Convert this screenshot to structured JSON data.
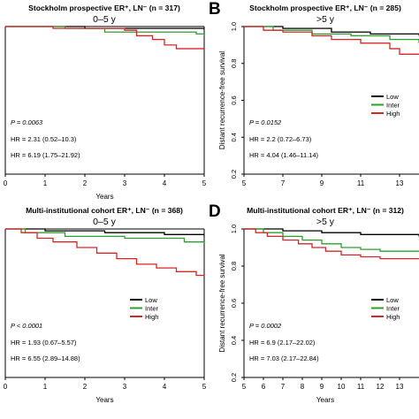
{
  "colors": {
    "low": "#000000",
    "inter": "#2ca02c",
    "high": "#d62728",
    "axis": "#000000"
  },
  "chart_data": [
    {
      "type": "line",
      "panel_letter": "",
      "title": "Stockholm prospective ER⁺, LN⁻ (n = 317)",
      "subtitle": "0–5 y",
      "xlabel": "Years",
      "ylabel": "",
      "xlim": [
        0,
        5
      ],
      "ylim": [
        0.2,
        1.0
      ],
      "xticks": [
        "0",
        "1",
        "2",
        "3",
        "4",
        "5"
      ],
      "yticks": [],
      "legend": "",
      "annotations": [
        "P = 0.0063",
        "HR = 2.31 (0.52–10.3)",
        "HR = 6.19 (1.75–21.92)"
      ],
      "series": [
        {
          "name": "Low",
          "color_key": "low",
          "points": [
            [
              0,
              1.0
            ],
            [
              2.0,
              0.99
            ],
            [
              5,
              0.98
            ]
          ]
        },
        {
          "name": "Inter",
          "color_key": "inter",
          "points": [
            [
              0,
              1.0
            ],
            [
              1.5,
              0.99
            ],
            [
              2.5,
              0.97
            ],
            [
              4.8,
              0.96
            ],
            [
              5,
              0.95
            ]
          ]
        },
        {
          "name": "High",
          "color_key": "high",
          "points": [
            [
              0,
              1.0
            ],
            [
              1.2,
              0.99
            ],
            [
              3.0,
              0.98
            ],
            [
              3.3,
              0.95
            ],
            [
              3.7,
              0.93
            ],
            [
              4.0,
              0.9
            ],
            [
              4.3,
              0.88
            ],
            [
              5,
              0.88
            ]
          ]
        }
      ]
    },
    {
      "type": "line",
      "panel_letter": "B",
      "title": "Stockholm prospective ER⁺, LN⁻ (n = 285)",
      "subtitle": ">5 y",
      "xlabel": "",
      "ylabel": "Distant recurrence-free survival",
      "xlim": [
        5,
        14
      ],
      "ylim": [
        0.2,
        1.0
      ],
      "xticks": [
        "5",
        "7",
        "9",
        "11",
        "13"
      ],
      "yticks": [
        "0.2",
        "0.4",
        "0.6",
        "0.8",
        "1.0"
      ],
      "legend": "top-right",
      "annotations": [
        "P = 0.0152",
        "HR = 2.2 (0.72–6.73)",
        "HR = 4.04 (1.46–11.14)"
      ],
      "series": [
        {
          "name": "Low",
          "color_key": "low",
          "points": [
            [
              5,
              1.0
            ],
            [
              7.0,
              0.99
            ],
            [
              9.5,
              0.97
            ],
            [
              11.5,
              0.96
            ],
            [
              14,
              0.95
            ]
          ]
        },
        {
          "name": "Inter",
          "color_key": "inter",
          "points": [
            [
              5,
              1.0
            ],
            [
              6.5,
              0.98
            ],
            [
              8.5,
              0.96
            ],
            [
              10.5,
              0.95
            ],
            [
              12.5,
              0.93
            ],
            [
              14,
              0.91
            ]
          ]
        },
        {
          "name": "High",
          "color_key": "high",
          "points": [
            [
              5,
              1.0
            ],
            [
              6.0,
              0.98
            ],
            [
              7.0,
              0.97
            ],
            [
              8.5,
              0.95
            ],
            [
              9.5,
              0.93
            ],
            [
              11.0,
              0.91
            ],
            [
              12.5,
              0.88
            ],
            [
              13.0,
              0.85
            ],
            [
              14,
              0.85
            ]
          ]
        }
      ]
    },
    {
      "type": "line",
      "panel_letter": "",
      "title": "Multi-institutional cohort ER⁺, LN⁻ (n = 368)",
      "subtitle": "0–5 y",
      "xlabel": "Years",
      "ylabel": "",
      "xlim": [
        0,
        5
      ],
      "ylim": [
        0.2,
        1.0
      ],
      "xticks": [
        "0",
        "1",
        "2",
        "3",
        "4",
        "5"
      ],
      "yticks": [],
      "legend": "right",
      "annotations": [
        "P < 0.0001",
        "HR = 1.93 (0.67–5.57)",
        "HR = 6.55 (2.89–14.88)"
      ],
      "series": [
        {
          "name": "Low",
          "color_key": "low",
          "points": [
            [
              0,
              1.0
            ],
            [
              1.0,
              0.99
            ],
            [
              2.5,
              0.98
            ],
            [
              4.0,
              0.97
            ],
            [
              5,
              0.96
            ]
          ]
        },
        {
          "name": "Inter",
          "color_key": "inter",
          "points": [
            [
              0,
              1.0
            ],
            [
              0.5,
              0.98
            ],
            [
              1.5,
              0.96
            ],
            [
              3.0,
              0.95
            ],
            [
              4.5,
              0.93
            ],
            [
              5,
              0.92
            ]
          ]
        },
        {
          "name": "High",
          "color_key": "high",
          "points": [
            [
              0,
              1.0
            ],
            [
              0.4,
              0.98
            ],
            [
              0.8,
              0.95
            ],
            [
              1.2,
              0.93
            ],
            [
              1.8,
              0.9
            ],
            [
              2.3,
              0.87
            ],
            [
              2.8,
              0.84
            ],
            [
              3.3,
              0.81
            ],
            [
              3.8,
              0.79
            ],
            [
              4.3,
              0.77
            ],
            [
              4.8,
              0.75
            ],
            [
              5,
              0.75
            ]
          ]
        }
      ]
    },
    {
      "type": "line",
      "panel_letter": "D",
      "title": "Multi-institutional cohort ER⁺, LN⁻ (n = 312)",
      "subtitle": ">5 y",
      "xlabel": "Years",
      "ylabel": "Distant recurrence-free survival",
      "xlim": [
        5,
        14
      ],
      "ylim": [
        0.2,
        1.0
      ],
      "xticks": [
        "5",
        "6",
        "7",
        "8",
        "9",
        "10",
        "11",
        "12",
        "13"
      ],
      "yticks": [
        "0.2",
        "0.4",
        "0.6",
        "0.8",
        "1.0"
      ],
      "legend": "top-right",
      "annotations": [
        "P = 0.0002",
        "HR = 6.9 (2.17–22.02)",
        "HR = 7.03 (2.17–22.84)"
      ],
      "series": [
        {
          "name": "Low",
          "color_key": "low",
          "points": [
            [
              5,
              1.0
            ],
            [
              7.0,
              0.99
            ],
            [
              9.0,
              0.98
            ],
            [
              11.0,
              0.97
            ],
            [
              14,
              0.96
            ]
          ]
        },
        {
          "name": "Inter",
          "color_key": "inter",
          "points": [
            [
              5,
              1.0
            ],
            [
              6.0,
              0.98
            ],
            [
              7.0,
              0.96
            ],
            [
              8.0,
              0.94
            ],
            [
              9.0,
              0.92
            ],
            [
              10.0,
              0.9
            ],
            [
              11.0,
              0.89
            ],
            [
              12.0,
              0.88
            ],
            [
              14,
              0.88
            ]
          ]
        },
        {
          "name": "High",
          "color_key": "high",
          "points": [
            [
              5,
              1.0
            ],
            [
              5.6,
              0.98
            ],
            [
              6.2,
              0.96
            ],
            [
              7.0,
              0.94
            ],
            [
              7.8,
              0.92
            ],
            [
              8.5,
              0.9
            ],
            [
              9.2,
              0.88
            ],
            [
              10.0,
              0.86
            ],
            [
              11.0,
              0.85
            ],
            [
              12.0,
              0.84
            ],
            [
              14,
              0.84
            ]
          ]
        }
      ]
    }
  ]
}
